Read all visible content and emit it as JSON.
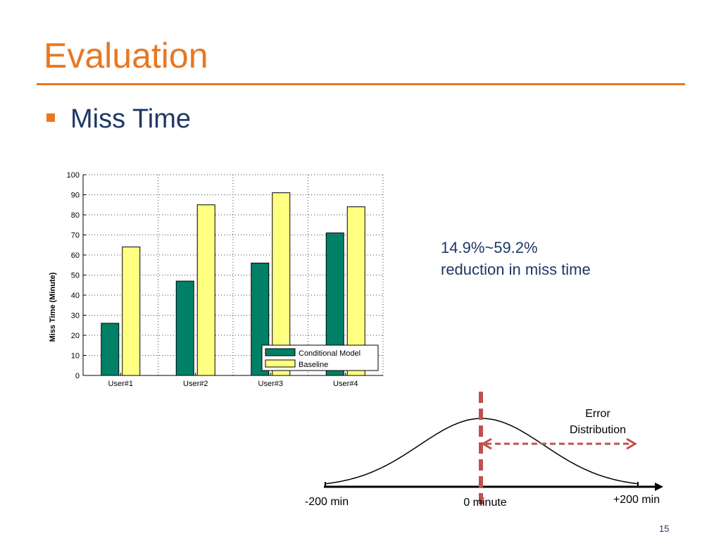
{
  "slide": {
    "title": "Evaluation",
    "bullet": "Miss Time",
    "note_line1": "14.9%~59.2%",
    "note_line2": "reduction in miss time",
    "page_number": "15",
    "accent_color": "#e87722",
    "text_color": "#1f3864"
  },
  "chart_data": [
    {
      "type": "bar",
      "categories": [
        "User#1",
        "User#2",
        "User#3",
        "User#4"
      ],
      "series": [
        {
          "name": "Conditional Model",
          "values": [
            26,
            47,
            56,
            71
          ],
          "color": "#008066"
        },
        {
          "name": "Baseline",
          "values": [
            64,
            85,
            91,
            84
          ],
          "color": "#ffff80"
        }
      ],
      "title": "",
      "xlabel": "",
      "ylabel": "Miss Time (Minute)",
      "ylim": [
        0,
        100
      ],
      "yticks": [
        0,
        10,
        20,
        30,
        40,
        50,
        60,
        70,
        80,
        90,
        100
      ],
      "grid": true,
      "legend": "bottom-right"
    },
    {
      "type": "line",
      "title": "",
      "label": "Error Distribution",
      "label_line1": "Error",
      "label_line2": "Distribution",
      "x_labels": [
        "-200 min",
        "0 minute",
        "+200 min"
      ],
      "x": [
        -200,
        0,
        200
      ],
      "curve": "normal",
      "curve_color": "#000000",
      "marker_color": "#c0504d"
    }
  ]
}
